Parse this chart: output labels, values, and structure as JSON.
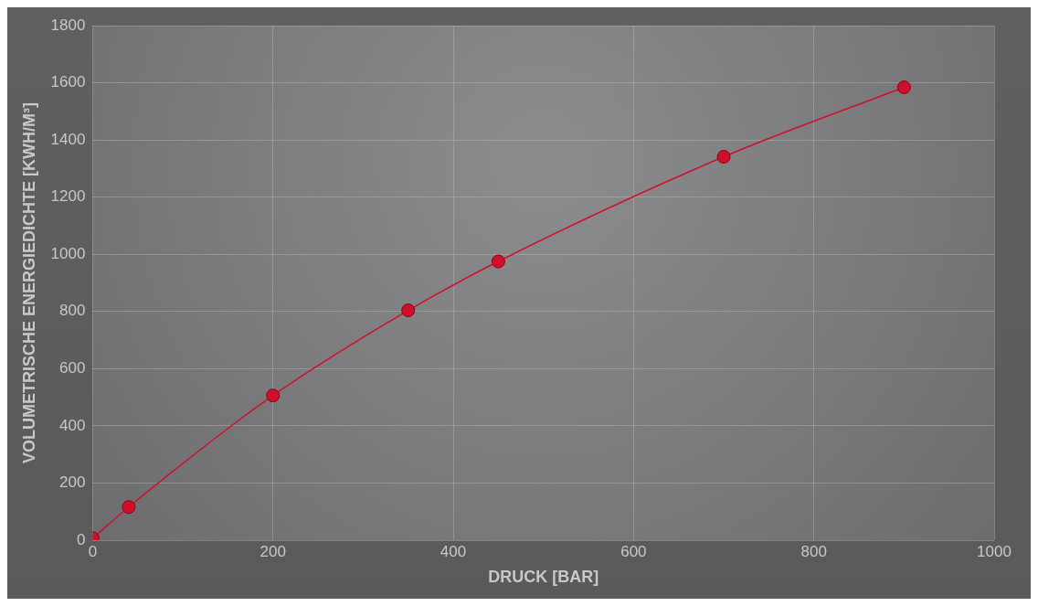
{
  "chart_data": {
    "type": "line",
    "xlabel": "DRUCK [BAR]",
    "ylabel": "VOLUMETRISCHE ENERGIEDICHTE [KWH/M³]",
    "x": [
      0,
      40,
      200,
      350,
      450,
      700,
      900
    ],
    "series": [
      {
        "color": "#d0102a",
        "values": [
          7,
          116,
          506,
          804,
          975,
          1341,
          1584
        ]
      }
    ],
    "xlim": [
      0,
      1000
    ],
    "xticks": [
      0,
      200,
      400,
      600,
      800,
      1000
    ],
    "ylim": [
      0,
      1800
    ],
    "yticks": [
      0,
      200,
      400,
      600,
      800,
      1000,
      1200,
      1400,
      1600,
      1800
    ],
    "grid": true,
    "marker": "circle",
    "line_style": "solid",
    "legend": false
  }
}
